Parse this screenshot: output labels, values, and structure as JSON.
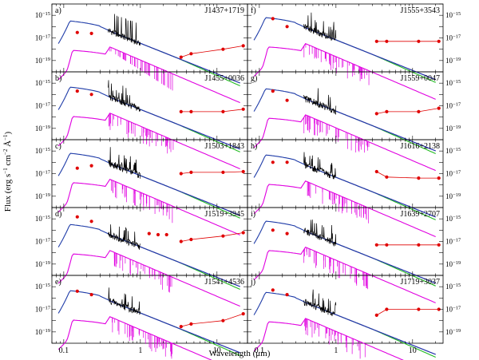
{
  "figure": {
    "ylabel_main": "Flux (erg s",
    "ylabel_sup1": "−1",
    "ylabel_mid": " cm",
    "ylabel_sup2": "−2",
    "ylabel_end": " Å",
    "ylabel_sup3": "−1",
    "ylabel_close": ")",
    "xlabel": "Wavelength (μm)"
  },
  "colors": {
    "spectrum_model": "#1f3ca8",
    "galaxy_template": "#e000e0",
    "quasar_template": "#8a2be2",
    "host_green": "#22bb22",
    "observed_spectrum": "#000000",
    "photometry": "#e00000"
  },
  "chart_data": [
    {
      "type": "line",
      "panel": "a)",
      "label": "J1437+1719",
      "xscale": "log",
      "yscale": "log",
      "xlim": [
        0.07,
        25
      ],
      "ylim": [
        1e-20,
        1e-14
      ],
      "xticks": [
        "0.1",
        "1",
        "10"
      ],
      "yticks": [
        "10^-15",
        "10^-17",
        "10^-19"
      ],
      "series": [],
      "photometry": {
        "x": [
          0.15,
          0.23,
          3.4,
          4.6,
          12,
          22
        ],
        "y": [
          3e-17,
          2.5e-17,
          2e-19,
          4e-19,
          1e-18,
          2e-18
        ]
      }
    },
    {
      "type": "line",
      "panel": "b)",
      "label": "J1455+0036",
      "xscale": "log",
      "yscale": "log",
      "xlim": [
        0.07,
        25
      ],
      "ylim": [
        1e-20,
        1e-14
      ],
      "xticks": [
        "0.1",
        "1",
        "10"
      ],
      "yticks": [
        "10^-15",
        "10^-17",
        "10^-19"
      ],
      "series": [],
      "photometry": {
        "x": [
          0.15,
          0.23,
          3.4,
          4.6,
          12,
          22
        ],
        "y": [
          2e-16,
          1e-16,
          3e-18,
          3e-18,
          3e-18,
          5e-18
        ]
      }
    },
    {
      "type": "line",
      "panel": "c)",
      "label": "J1503+1843",
      "xscale": "log",
      "yscale": "log",
      "xlim": [
        0.07,
        25
      ],
      "ylim": [
        1e-20,
        1e-14
      ],
      "xticks": [
        "0.1",
        "1",
        "10"
      ],
      "yticks": [
        "10^-15",
        "10^-17",
        "10^-19"
      ],
      "series": [],
      "photometry": {
        "x": [
          0.15,
          0.23,
          3.4,
          4.6,
          12,
          22
        ],
        "y": [
          3e-17,
          5e-17,
          1e-17,
          1.3e-17,
          1.3e-17,
          1.5e-17
        ]
      }
    },
    {
      "type": "line",
      "panel": "d)",
      "label": "J1519+3945",
      "xscale": "log",
      "yscale": "log",
      "xlim": [
        0.07,
        25
      ],
      "ylim": [
        1e-20,
        1e-14
      ],
      "xticks": [
        "0.1",
        "1",
        "10"
      ],
      "yticks": [
        "10^-15",
        "10^-17",
        "10^-19"
      ],
      "series": [],
      "photometry": {
        "x": [
          0.15,
          0.23,
          1.3,
          1.7,
          2.2,
          3.4,
          4.6,
          12,
          22
        ],
        "y": [
          1.5e-15,
          6e-16,
          5e-17,
          4e-17,
          4e-17,
          1e-17,
          1.5e-17,
          3e-17,
          6e-17
        ]
      }
    },
    {
      "type": "line",
      "panel": "e)",
      "label": "J1541+4536",
      "xscale": "log",
      "yscale": "log",
      "xlim": [
        0.07,
        25
      ],
      "ylim": [
        1e-20,
        1e-14
      ],
      "xticks": [
        "0.1",
        "1",
        "10"
      ],
      "yticks": [
        "10^-15",
        "10^-17",
        "10^-19"
      ],
      "series": [],
      "photometry": {
        "x": [
          0.15,
          0.23,
          3.4,
          4.6,
          12,
          22
        ],
        "y": [
          4e-16,
          2e-16,
          3e-19,
          5e-19,
          1e-18,
          4e-18
        ]
      }
    },
    {
      "type": "line",
      "panel": "f)",
      "label": "J1555+3543",
      "xscale": "log",
      "yscale": "log",
      "xlim": [
        0.07,
        25
      ],
      "ylim": [
        1e-20,
        1e-14
      ],
      "xticks": [
        "0.1",
        "1",
        "10"
      ],
      "yticks": [
        "10^-15",
        "10^-17",
        "10^-19"
      ],
      "series": [],
      "photometry": {
        "x": [
          0.15,
          0.23,
          3.4,
          4.6,
          12,
          22
        ],
        "y": [
          5e-16,
          1e-16,
          5e-18,
          5e-18,
          5e-18,
          5e-18
        ]
      }
    },
    {
      "type": "line",
      "panel": "g)",
      "label": "J1559+0047",
      "xscale": "log",
      "yscale": "log",
      "xlim": [
        0.07,
        25
      ],
      "ylim": [
        1e-20,
        1e-14
      ],
      "xticks": [
        "0.1",
        "1",
        "10"
      ],
      "yticks": [
        "10^-15",
        "10^-17",
        "10^-19"
      ],
      "series": [],
      "photometry": {
        "x": [
          0.15,
          0.23,
          3.4,
          4.6,
          12,
          22
        ],
        "y": [
          2e-16,
          3e-17,
          2e-18,
          3e-18,
          3e-18,
          6e-18
        ]
      }
    },
    {
      "type": "line",
      "panel": "h)",
      "label": "J1616+2138",
      "xscale": "log",
      "yscale": "log",
      "xlim": [
        0.07,
        25
      ],
      "ylim": [
        1e-20,
        1e-14
      ],
      "xticks": [
        "0.1",
        "1",
        "10"
      ],
      "yticks": [
        "10^-15",
        "10^-17",
        "10^-19"
      ],
      "series": [],
      "photometry": {
        "x": [
          0.15,
          0.23,
          3.4,
          4.6,
          12,
          22
        ],
        "y": [
          1e-16,
          1e-16,
          1.5e-17,
          5e-18,
          4e-18,
          4e-18
        ]
      }
    },
    {
      "type": "line",
      "panel": "i)",
      "label": "J1639+2707",
      "xscale": "log",
      "yscale": "log",
      "xlim": [
        0.07,
        25
      ],
      "ylim": [
        1e-20,
        1e-14
      ],
      "xticks": [
        "0.1",
        "1",
        "10"
      ],
      "yticks": [
        "10^-15",
        "10^-17",
        "10^-19"
      ],
      "series": [],
      "photometry": {
        "x": [
          0.15,
          0.23,
          3.4,
          4.6,
          12,
          22
        ],
        "y": [
          1e-16,
          5e-17,
          5e-18,
          5e-18,
          5e-18,
          5e-18
        ]
      }
    },
    {
      "type": "line",
      "panel": "j)",
      "label": "J1719+3037",
      "xscale": "log",
      "yscale": "log",
      "xlim": [
        0.07,
        25
      ],
      "ylim": [
        1e-20,
        1e-14
      ],
      "xticks": [
        "0.1",
        "1",
        "10"
      ],
      "yticks": [
        "10^-15",
        "10^-17",
        "10^-19"
      ],
      "series": [],
      "photometry": {
        "x": [
          0.15,
          0.23,
          3.4,
          4.6,
          12,
          22
        ],
        "y": [
          5e-16,
          2e-16,
          3e-18,
          1e-17,
          1e-17,
          1e-17
        ]
      }
    }
  ]
}
